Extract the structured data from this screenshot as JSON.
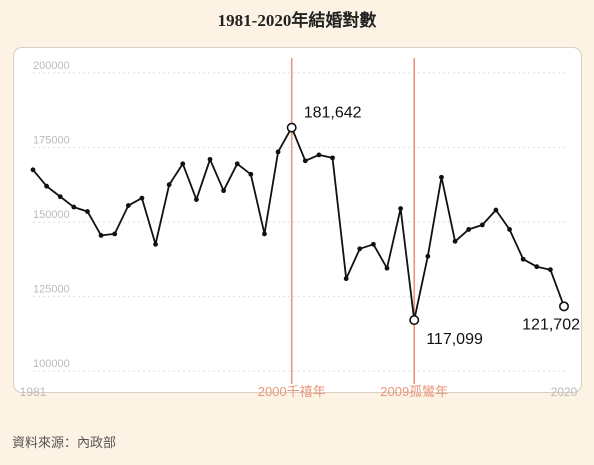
{
  "title": "1981-2020年結婚對數",
  "source": "資料來源：內政部",
  "colors": {
    "line": "#111111",
    "grid": "#e3e3e3",
    "tick": "#bbbbbb",
    "marker": "#e8967a"
  },
  "chart_data": {
    "type": "line",
    "x": [
      1981,
      1982,
      1983,
      1984,
      1985,
      1986,
      1987,
      1988,
      1989,
      1990,
      1991,
      1992,
      1993,
      1994,
      1995,
      1996,
      1997,
      1998,
      1999,
      2000,
      2001,
      2002,
      2003,
      2004,
      2005,
      2006,
      2007,
      2008,
      2009,
      2010,
      2011,
      2012,
      2013,
      2014,
      2015,
      2016,
      2017,
      2018,
      2019,
      2020
    ],
    "values": [
      167500,
      162000,
      158500,
      155000,
      153500,
      145500,
      146000,
      155500,
      158000,
      142500,
      162500,
      169500,
      157500,
      171000,
      160500,
      169500,
      166000,
      146000,
      173500,
      181642,
      170500,
      172500,
      171500,
      131000,
      141000,
      142500,
      134500,
      154500,
      117099,
      138500,
      165000,
      143500,
      147500,
      149000,
      154000,
      147500,
      137500,
      135000,
      134000,
      121702
    ],
    "xlim": [
      1981,
      2020
    ],
    "ylim": [
      97000,
      206000
    ],
    "yticks": [
      100000,
      125000,
      150000,
      175000,
      200000
    ],
    "ytick_labels": [
      "100000",
      "125000",
      "150000",
      "175000",
      "200000"
    ],
    "xtick_labels": [
      "1981",
      "2020"
    ],
    "markers": [
      {
        "x": 2000,
        "label": "2000千禧年"
      },
      {
        "x": 2009,
        "label": "2009孤鸞年"
      }
    ],
    "annotations": [
      {
        "x": 2000,
        "value": 181642,
        "label": "181,642",
        "pos": "right"
      },
      {
        "x": 2009,
        "value": 117099,
        "label": "117,099",
        "pos": "below-right"
      },
      {
        "x": 2020,
        "value": 121702,
        "label": "121,702",
        "pos": "below-left"
      }
    ],
    "grid": true
  }
}
